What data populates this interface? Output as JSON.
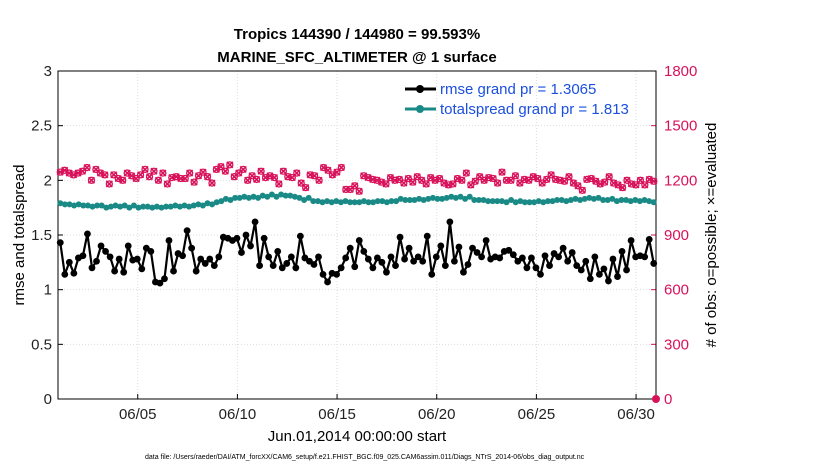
{
  "chart_data": {
    "type": "line",
    "title": "Tropics 144390 / 144980 = 99.593%",
    "subtitle": "MARINE_SFC_ALTIMETER @ 1 surface",
    "xlabel": "Jun.01,2014 00:00:00 start",
    "ylabel": "rmse and totalspread",
    "y2label": "# of obs: o=possible; ×=evaluated",
    "xlim": [
      1,
      31
    ],
    "ylim": [
      0,
      3
    ],
    "y2lim": [
      0,
      1800
    ],
    "x_ticks": [
      5,
      10,
      15,
      20,
      25,
      30
    ],
    "x_tick_labels": [
      "06/05",
      "06/10",
      "06/15",
      "06/20",
      "06/25",
      "06/30"
    ],
    "y_ticks": [
      0,
      0.5,
      1,
      1.5,
      2,
      2.5,
      3
    ],
    "y_tick_labels": [
      "0",
      "0.5",
      "1",
      "1.5",
      "2",
      "2.5",
      "3"
    ],
    "y2_ticks": [
      0,
      300,
      600,
      900,
      1200,
      1500,
      1800
    ],
    "y2_tick_labels": [
      "0",
      "300",
      "600",
      "900",
      "1200",
      "1500",
      "1800"
    ],
    "grid": true,
    "legend_position": "top-right",
    "legend": [
      "rmse grand pr = 1.3065",
      "totalspread grand pr = 1.813"
    ],
    "colors": {
      "rmse": "#000000",
      "totalspread": "#1a8a86",
      "obs": "#d8125a",
      "legend_text": "#1a4fe0"
    },
    "series": [
      {
        "name": "rmse grand pr = 1.3065",
        "axis": "left",
        "marker": "star",
        "values": [
          1.43,
          1.14,
          1.25,
          1.15,
          1.29,
          1.31,
          1.51,
          1.2,
          1.26,
          1.4,
          1.35,
          1.3,
          1.17,
          1.28,
          1.16,
          1.4,
          1.27,
          1.28,
          1.19,
          1.38,
          1.35,
          1.07,
          1.06,
          1.1,
          1.45,
          1.17,
          1.33,
          1.31,
          1.54,
          1.38,
          1.17,
          1.28,
          1.24,
          1.28,
          1.22,
          1.3,
          1.48,
          1.47,
          1.45,
          1.47,
          1.34,
          1.5,
          1.4,
          1.62,
          1.22,
          1.47,
          1.3,
          1.22,
          1.35,
          1.2,
          1.24,
          1.3,
          1.2,
          1.49,
          1.29,
          1.26,
          1.23,
          1.3,
          1.14,
          1.07,
          1.15,
          1.14,
          1.2,
          1.29,
          1.38,
          1.21,
          1.45,
          1.35,
          1.28,
          1.2,
          1.29,
          1.25,
          1.16,
          1.3,
          1.22,
          1.48,
          1.28,
          1.38,
          1.26,
          1.3,
          1.26,
          1.49,
          1.14,
          1.3,
          1.4,
          1.22,
          1.62,
          1.26,
          1.39,
          1.16,
          1.23,
          1.38,
          1.34,
          1.3,
          1.45,
          1.28,
          1.3,
          1.29,
          1.35,
          1.36,
          1.32,
          1.26,
          1.29,
          1.2,
          1.29,
          1.2,
          1.14,
          1.31,
          1.22,
          1.33,
          1.3,
          1.38,
          1.26,
          1.34,
          1.22,
          1.18,
          1.26,
          1.1,
          1.3,
          1.14,
          1.19,
          1.08,
          1.28,
          1.12,
          1.35,
          1.18,
          1.45,
          1.3,
          1.31,
          1.3,
          1.46,
          1.24
        ]
      },
      {
        "name": "totalspread grand pr = 1.813",
        "axis": "left",
        "marker": "dot",
        "values": [
          1.79,
          1.78,
          1.78,
          1.77,
          1.78,
          1.77,
          1.77,
          1.76,
          1.77,
          1.77,
          1.75,
          1.76,
          1.77,
          1.76,
          1.77,
          1.75,
          1.77,
          1.75,
          1.76,
          1.76,
          1.75,
          1.76,
          1.75,
          1.76,
          1.76,
          1.77,
          1.76,
          1.77,
          1.76,
          1.77,
          1.78,
          1.77,
          1.79,
          1.78,
          1.8,
          1.81,
          1.83,
          1.82,
          1.84,
          1.84,
          1.85,
          1.84,
          1.85,
          1.84,
          1.86,
          1.85,
          1.87,
          1.85,
          1.87,
          1.86,
          1.86,
          1.85,
          1.84,
          1.82,
          1.84,
          1.81,
          1.81,
          1.8,
          1.81,
          1.8,
          1.81,
          1.8,
          1.81,
          1.8,
          1.8,
          1.8,
          1.81,
          1.8,
          1.8,
          1.81,
          1.81,
          1.8,
          1.81,
          1.81,
          1.83,
          1.82,
          1.82,
          1.82,
          1.83,
          1.82,
          1.83,
          1.84,
          1.83,
          1.83,
          1.84,
          1.85,
          1.84,
          1.85,
          1.83,
          1.85,
          1.82,
          1.82,
          1.82,
          1.81,
          1.81,
          1.81,
          1.81,
          1.8,
          1.82,
          1.8,
          1.81,
          1.8,
          1.8,
          1.8,
          1.81,
          1.8,
          1.81,
          1.81,
          1.82,
          1.82,
          1.81,
          1.82,
          1.83,
          1.82,
          1.83,
          1.84,
          1.83,
          1.84,
          1.82,
          1.82,
          1.83,
          1.81,
          1.82,
          1.82,
          1.81,
          1.82,
          1.81,
          1.82,
          1.81,
          1.8
        ]
      },
      {
        "name": "obs possible",
        "axis": "right",
        "marker": "circle",
        "values": [
          1245,
          1255,
          1240,
          1230,
          1240,
          1250,
          1270,
          1200,
          1260,
          1240,
          1230,
          1180,
          1230,
          1210,
          1200,
          1240,
          1225,
          1210,
          1230,
          1260,
          1220,
          1250,
          1200,
          1240,
          1180,
          1215,
          1220,
          1210,
          1210,
          1240,
          1190,
          1225,
          1245,
          1220,
          1185,
          1260,
          1275,
          1250,
          1285,
          1220,
          1240,
          1260,
          1200,
          1225,
          1205,
          1250,
          1215,
          1225,
          1215,
          1180,
          1250,
          1220,
          1215,
          1240,
          1185,
          1160,
          1230,
          1225,
          1200,
          1270,
          1255,
          1230,
          1245,
          1270,
          1150,
          1150,
          1170,
          1140,
          1225,
          1215,
          1205,
          1200,
          1190,
          1180,
          1215,
          1200,
          1205,
          1185,
          1210,
          1190,
          1220,
          1200,
          1180,
          1215,
          1200,
          1210,
          1185,
          1175,
          1180,
          1210,
          1200,
          1240,
          1175,
          1195,
          1220,
          1200,
          1215,
          1210,
          1185,
          1245,
          1200,
          1200,
          1225,
          1185,
          1205,
          1200,
          1220,
          1210,
          1185,
          1205,
          1230,
          1205,
          1200,
          1195,
          1220,
          1185,
          1170,
          1145,
          1205,
          1210,
          1195,
          1180,
          1190,
          1220,
          1185,
          1175,
          1160,
          1200,
          1180,
          1175,
          1200,
          1175,
          1205,
          1195
        ]
      },
      {
        "name": "obs evaluated",
        "axis": "right",
        "marker": "x",
        "values": [
          1245,
          1255,
          1240,
          1230,
          1240,
          1250,
          1270,
          1200,
          1260,
          1240,
          1230,
          1180,
          1230,
          1210,
          1200,
          1240,
          1225,
          1210,
          1230,
          1260,
          1220,
          1250,
          1200,
          1240,
          1180,
          1215,
          1220,
          1210,
          1210,
          1240,
          1190,
          1225,
          1245,
          1220,
          1185,
          1260,
          1275,
          1250,
          1285,
          1220,
          1240,
          1260,
          1200,
          1225,
          1205,
          1250,
          1215,
          1225,
          1215,
          1180,
          1250,
          1220,
          1215,
          1240,
          1185,
          1160,
          1230,
          1225,
          1200,
          1270,
          1255,
          1230,
          1245,
          1270,
          1150,
          1150,
          1170,
          1140,
          1225,
          1215,
          1205,
          1200,
          1190,
          1180,
          1215,
          1200,
          1205,
          1185,
          1210,
          1190,
          1220,
          1200,
          1180,
          1215,
          1200,
          1210,
          1185,
          1175,
          1180,
          1210,
          1200,
          1240,
          1175,
          1195,
          1220,
          1200,
          1215,
          1210,
          1185,
          1245,
          1200,
          1200,
          1225,
          1185,
          1205,
          1200,
          1220,
          1210,
          1185,
          1205,
          1230,
          1205,
          1200,
          1195,
          1220,
          1185,
          1170,
          1145,
          1205,
          1210,
          1195,
          1180,
          1190,
          1220,
          1185,
          1175,
          1160,
          1200,
          1180,
          1175,
          1200,
          1175,
          1205,
          1195
        ]
      }
    ],
    "annotations": []
  },
  "footer": "data file: /Users/raeder/DAI/ATM_forcXX/CAM6_setup/f.e21.FHIST_BGC.f09_025.CAM6assim.011/Diags_NTrS_2014-06/obs_diag_output.nc"
}
